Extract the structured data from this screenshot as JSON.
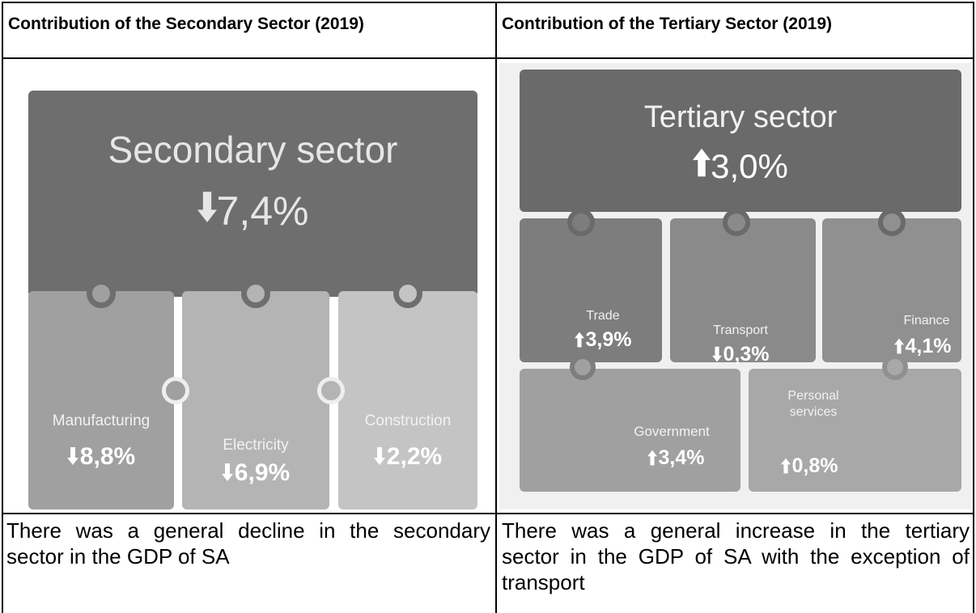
{
  "table": {
    "headers": [
      "Contribution of the Secondary Sector (2019)",
      "Contribution of the Tertiary Sector (2019)"
    ],
    "secondary": {
      "title": "Secondary sector",
      "change": "7,4%",
      "items": [
        {
          "label": "Manufacturing",
          "change": "8,8%"
        },
        {
          "label": "Electricity",
          "change": "6,9%"
        },
        {
          "label": "Construction",
          "change": "2,2%"
        }
      ]
    },
    "tertiary": {
      "title": "Tertiary sector",
      "change": "3,0%",
      "items": [
        {
          "label": "Trade",
          "change": "3,9%"
        },
        {
          "label": "Transport",
          "change": "0,3%"
        },
        {
          "label": "Finance",
          "change": "4,1%"
        },
        {
          "label": "Government",
          "change": "3,4%"
        },
        {
          "label": "Personal services",
          "change": "0,8%"
        }
      ]
    },
    "notes": [
      "There was a general decline in the secondary sector in the GDP of SA",
      "There was a general increase in the tertiary sector in the GDP of SA with the exception of transport"
    ]
  }
}
